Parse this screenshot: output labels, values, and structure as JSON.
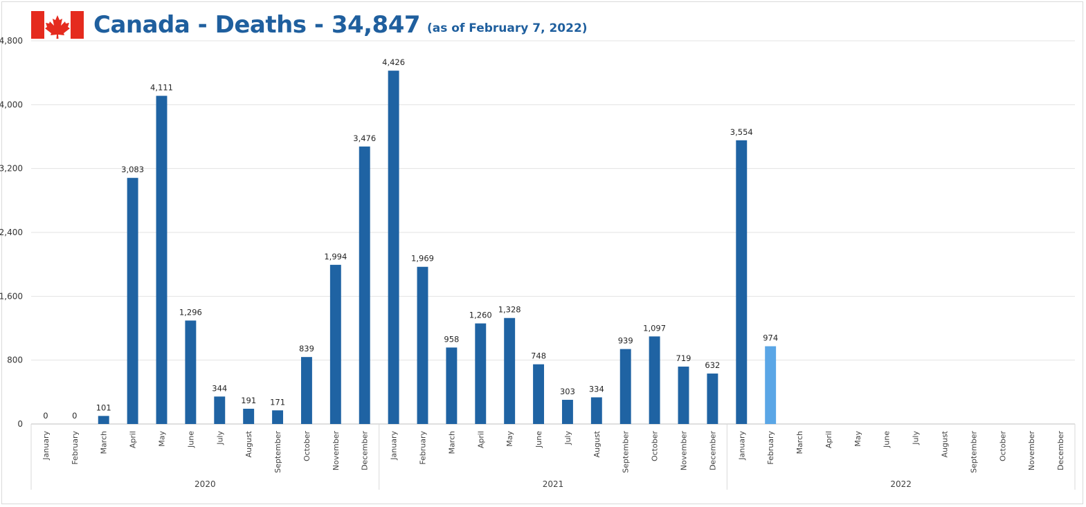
{
  "header": {
    "title": "Canada - Deaths - 34,847",
    "subtitle": "(as of February 7, 2022)"
  },
  "colors": {
    "bar": "#1f63a3",
    "bar_highlight": "#5aa6e6",
    "title": "#1f5f9e",
    "flag_red": "#e52b1e"
  },
  "chart_data": {
    "type": "bar",
    "ylim": [
      0,
      4800
    ],
    "yticks": [
      "0",
      "800",
      "1,600",
      "2,400",
      "3,200",
      "4,000",
      "4,800"
    ],
    "grid": true,
    "groups": [
      {
        "year": "2020",
        "months": [
          "January",
          "February",
          "March",
          "April",
          "May",
          "June",
          "July",
          "August",
          "September",
          "October",
          "November",
          "December"
        ],
        "values": [
          0,
          0,
          101,
          3083,
          4111,
          1296,
          344,
          191,
          171,
          839,
          1994,
          3476
        ],
        "labels": [
          "0",
          "0",
          "101",
          "3,083",
          "4,111",
          "1,296",
          "344",
          "191",
          "171",
          "839",
          "1,994",
          "3,476"
        ]
      },
      {
        "year": "2021",
        "months": [
          "January",
          "February",
          "March",
          "April",
          "May",
          "June",
          "July",
          "August",
          "September",
          "October",
          "November",
          "December"
        ],
        "values": [
          4426,
          1969,
          958,
          1260,
          1328,
          748,
          303,
          334,
          939,
          1097,
          719,
          632
        ],
        "labels": [
          "4,426",
          "1,969",
          "958",
          "1,260",
          "1,328",
          "748",
          "303",
          "334",
          "939",
          "1,097",
          "719",
          "632"
        ]
      },
      {
        "year": "2022",
        "months": [
          "January",
          "February",
          "March",
          "April",
          "May",
          "June",
          "July",
          "August",
          "September",
          "October",
          "November",
          "December"
        ],
        "values": [
          3554,
          974,
          null,
          null,
          null,
          null,
          null,
          null,
          null,
          null,
          null,
          null
        ],
        "labels": [
          "3,554",
          "974",
          "",
          "",
          "",
          "",
          "",
          "",
          "",
          "",
          "",
          ""
        ]
      }
    ],
    "highlight": {
      "group": 2,
      "index": 1
    }
  }
}
